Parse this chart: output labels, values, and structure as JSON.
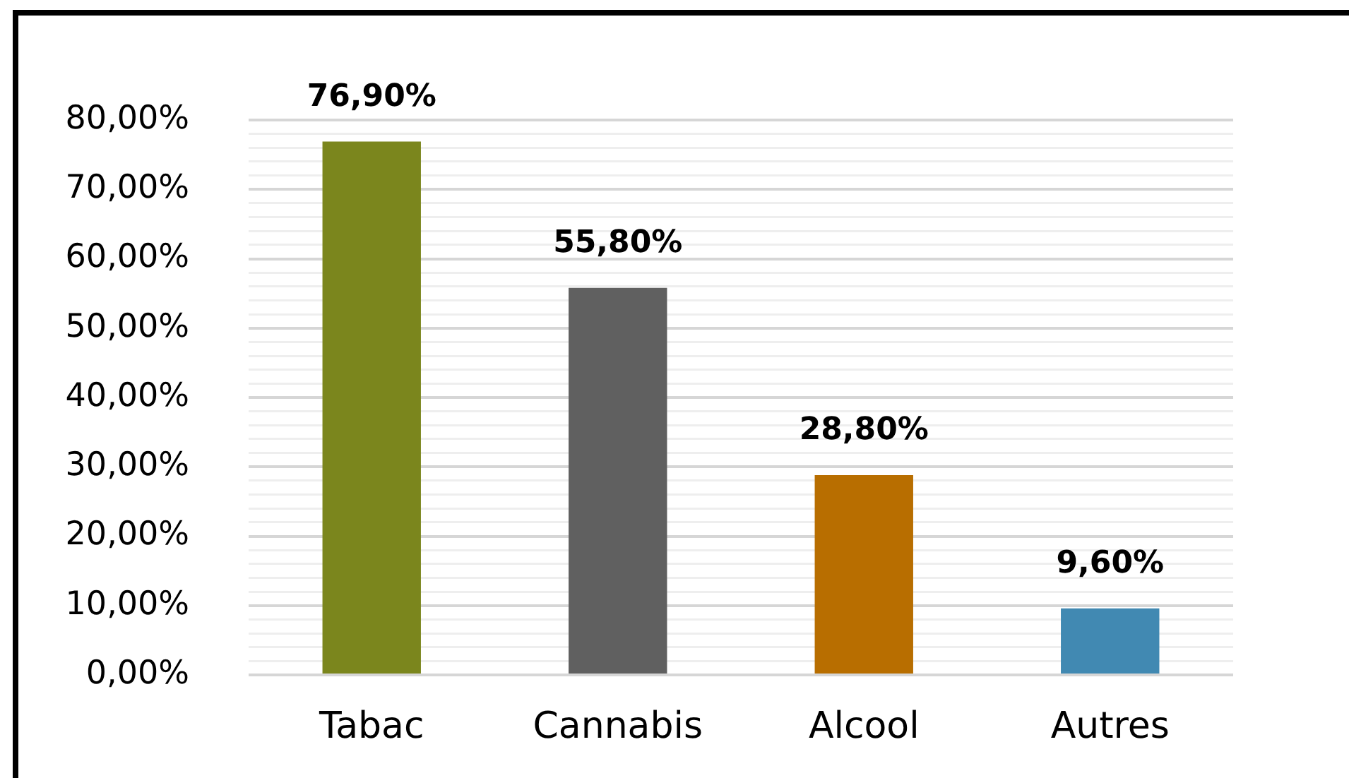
{
  "chart_data": {
    "type": "bar",
    "categories": [
      "Tabac",
      "Cannabis",
      "Alcool",
      "Autres"
    ],
    "values": [
      76.9,
      55.8,
      28.8,
      9.6
    ],
    "colors": [
      "#7b861d",
      "#606060",
      "#b86e00",
      "#4189b2"
    ],
    "value_labels": [
      "76,90%",
      "55,80%",
      "28,80%",
      "9,60%"
    ],
    "ylim": [
      0,
      80
    ],
    "yticks": [
      {
        "value": 0,
        "label": "0,00%"
      },
      {
        "value": 2,
        "label": null
      },
      {
        "value": 4,
        "label": null
      },
      {
        "value": 6,
        "label": null
      },
      {
        "value": 8,
        "label": null
      },
      {
        "value": 10,
        "label": "10,00%"
      },
      {
        "value": 12,
        "label": null
      },
      {
        "value": 14,
        "label": null
      },
      {
        "value": 16,
        "label": null
      },
      {
        "value": 18,
        "label": null
      },
      {
        "value": 20,
        "label": "20,00%"
      },
      {
        "value": 22,
        "label": null
      },
      {
        "value": 24,
        "label": null
      },
      {
        "value": 26,
        "label": null
      },
      {
        "value": 28,
        "label": null
      },
      {
        "value": 30,
        "label": "30,00%"
      },
      {
        "value": 32,
        "label": null
      },
      {
        "value": 34,
        "label": null
      },
      {
        "value": 36,
        "label": null
      },
      {
        "value": 38,
        "label": null
      },
      {
        "value": 40,
        "label": "40,00%"
      },
      {
        "value": 42,
        "label": null
      },
      {
        "value": 44,
        "label": null
      },
      {
        "value": 46,
        "label": null
      },
      {
        "value": 48,
        "label": null
      },
      {
        "value": 50,
        "label": "50,00%"
      },
      {
        "value": 52,
        "label": null
      },
      {
        "value": 54,
        "label": null
      },
      {
        "value": 56,
        "label": null
      },
      {
        "value": 58,
        "label": null
      },
      {
        "value": 60,
        "label": "60,00%"
      },
      {
        "value": 62,
        "label": null
      },
      {
        "value": 64,
        "label": null
      },
      {
        "value": 66,
        "label": null
      },
      {
        "value": 68,
        "label": null
      },
      {
        "value": 70,
        "label": "70,00%"
      },
      {
        "value": 72,
        "label": null
      },
      {
        "value": 74,
        "label": null
      },
      {
        "value": 76,
        "label": null
      },
      {
        "value": 78,
        "label": null
      },
      {
        "value": 80,
        "label": "80,00%"
      }
    ],
    "grid": "y"
  }
}
